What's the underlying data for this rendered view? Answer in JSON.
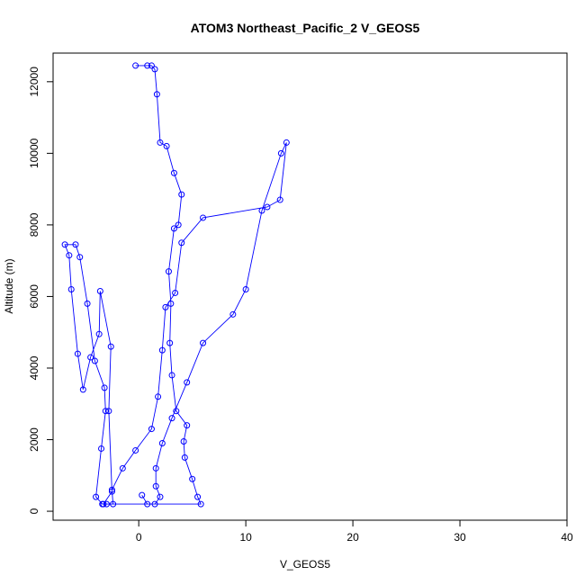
{
  "chart_data": {
    "type": "line",
    "title": "ATOM3 Northeast_Pacific_2 V_GEOS5",
    "xlabel": "V_GEOS5",
    "ylabel": "Altitude (m)",
    "xlim": [
      -8,
      40
    ],
    "ylim": [
      -250,
      12800
    ],
    "xticks": [
      0,
      10,
      20,
      30,
      40
    ],
    "yticks": [
      0,
      2000,
      4000,
      6000,
      8000,
      10000,
      12000
    ],
    "grid": false,
    "legend": "none",
    "series_color": "#0000ff",
    "points": [
      [
        -0.3,
        12450
      ],
      [
        0.8,
        12450
      ],
      [
        1.2,
        12450
      ],
      [
        1.5,
        12350
      ],
      [
        1.7,
        11650
      ],
      [
        2.0,
        10300
      ],
      [
        2.6,
        10200
      ],
      [
        3.3,
        9450
      ],
      [
        4.0,
        8850
      ],
      [
        3.7,
        8000
      ],
      [
        3.3,
        7900
      ],
      [
        2.8,
        6700
      ],
      [
        3.0,
        5800
      ],
      [
        2.9,
        4700
      ],
      [
        3.1,
        3800
      ],
      [
        3.5,
        2800
      ],
      [
        4.5,
        2400
      ],
      [
        4.2,
        1950
      ],
      [
        4.3,
        1500
      ],
      [
        5.0,
        900
      ],
      [
        5.5,
        400
      ],
      [
        5.8,
        200
      ],
      [
        -3.0,
        200
      ],
      [
        -3.3,
        200
      ],
      [
        -2.5,
        550
      ],
      [
        -2.8,
        2800
      ],
      [
        -2.6,
        4600
      ],
      [
        -3.6,
        6150
      ],
      [
        -3.7,
        4950
      ],
      [
        -4.5,
        4300
      ],
      [
        -5.2,
        3400
      ],
      [
        -5.7,
        4400
      ],
      [
        -6.3,
        6200
      ],
      [
        -6.5,
        7150
      ],
      [
        -6.9,
        7450
      ],
      [
        -5.9,
        7450
      ],
      [
        -5.5,
        7100
      ],
      [
        -4.8,
        5800
      ],
      [
        -4.1,
        4200
      ],
      [
        -3.2,
        3450
      ],
      [
        -3.1,
        2800
      ],
      [
        -3.5,
        1750
      ],
      [
        -4.0,
        400
      ],
      [
        -3.4,
        200
      ],
      [
        -2.4,
        200
      ],
      [
        -2.5,
        600
      ],
      [
        -1.5,
        1200
      ],
      [
        -0.3,
        1700
      ],
      [
        1.2,
        2300
      ],
      [
        1.8,
        3200
      ],
      [
        2.2,
        4500
      ],
      [
        2.5,
        5700
      ],
      [
        3.4,
        6100
      ],
      [
        4.0,
        7500
      ],
      [
        6.0,
        8200
      ],
      [
        12.0,
        8500
      ],
      [
        13.2,
        8700
      ],
      [
        13.8,
        10300
      ],
      [
        13.3,
        10000
      ],
      [
        11.5,
        8400
      ],
      [
        10.0,
        6200
      ],
      [
        8.8,
        5500
      ],
      [
        6.0,
        4700
      ],
      [
        4.5,
        3600
      ],
      [
        3.1,
        2600
      ],
      [
        2.2,
        1900
      ],
      [
        1.6,
        1200
      ],
      [
        1.6,
        700
      ],
      [
        2.0,
        400
      ],
      [
        1.5,
        200
      ],
      [
        0.8,
        200
      ],
      [
        0.3,
        450
      ]
    ]
  }
}
